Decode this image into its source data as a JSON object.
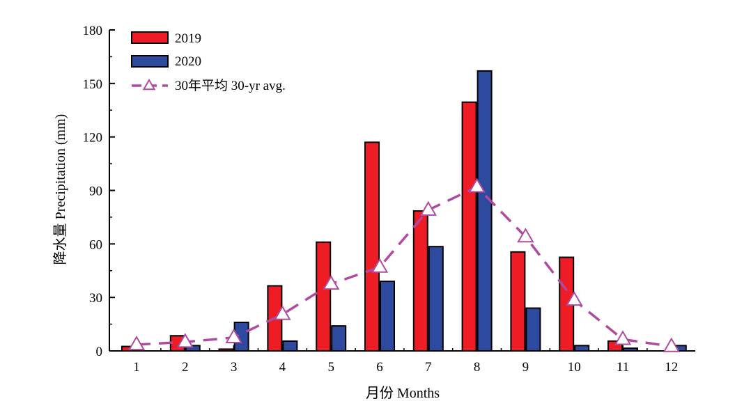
{
  "chart_data": {
    "type": "bar",
    "xlabel": "月份 Months",
    "ylabel": "降水量 Precipitation (mm)",
    "ylim": [
      0,
      180
    ],
    "yticks": [
      0,
      30,
      60,
      90,
      120,
      150,
      180
    ],
    "categories": [
      "1",
      "2",
      "3",
      "4",
      "5",
      "6",
      "7",
      "8",
      "9",
      "10",
      "11",
      "12"
    ],
    "legend_position": "top-left",
    "grid": false,
    "series": [
      {
        "name": "2019",
        "type": "bar",
        "color": "#ee1c25",
        "values": [
          2.5,
          8.5,
          1,
          36.5,
          61,
          117,
          78.5,
          139.5,
          55.5,
          52.5,
          5.5,
          0
        ]
      },
      {
        "name": "2020",
        "type": "bar",
        "color": "#2e4a9e",
        "values": [
          0,
          3,
          16,
          5.5,
          14,
          39,
          58.5,
          157,
          24,
          3,
          1.5,
          3
        ]
      },
      {
        "name": "30年平均 30-yr avg.",
        "type": "line",
        "color": "#b04a9e",
        "line_style": "dashed",
        "marker": "triangle",
        "values": [
          3.5,
          5,
          7.5,
          20.5,
          37.5,
          47,
          79,
          92,
          64,
          28.5,
          6.5,
          2.5
        ]
      }
    ]
  }
}
